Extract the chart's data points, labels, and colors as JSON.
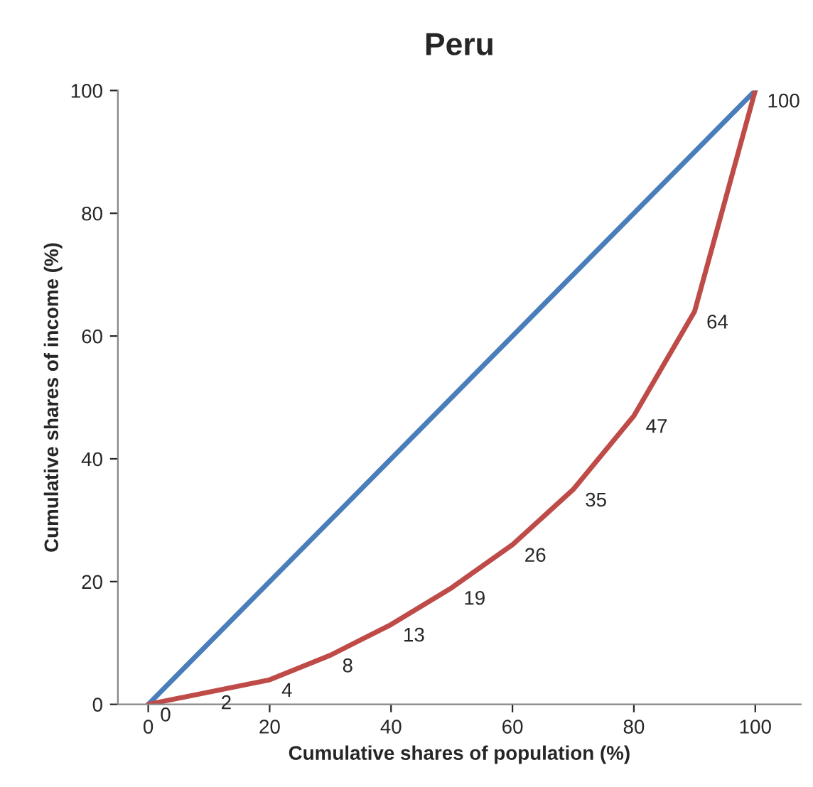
{
  "chart_data": {
    "type": "line",
    "title": "Peru",
    "xlabel": "Cumulative shares of population (%)",
    "ylabel": "Cumulative shares of income (%)",
    "xlim": [
      -5,
      107.5
    ],
    "ylim": [
      0,
      100
    ],
    "xticks": [
      0,
      20,
      40,
      60,
      80,
      100
    ],
    "yticks": [
      0,
      20,
      40,
      60,
      80,
      100
    ],
    "grid": false,
    "marker": "none",
    "line_style": "solid",
    "series": [
      {
        "color": "#4a7ebb",
        "x": [
          0,
          100
        ],
        "values": [
          0,
          100
        ]
      },
      {
        "color": "#be4b48",
        "x": [
          0,
          10,
          20,
          30,
          40,
          50,
          60,
          70,
          80,
          90,
          100
        ],
        "values": [
          0,
          2,
          4,
          8,
          13,
          19,
          26,
          35,
          47,
          64,
          100
        ],
        "data_labels": true
      }
    ]
  }
}
